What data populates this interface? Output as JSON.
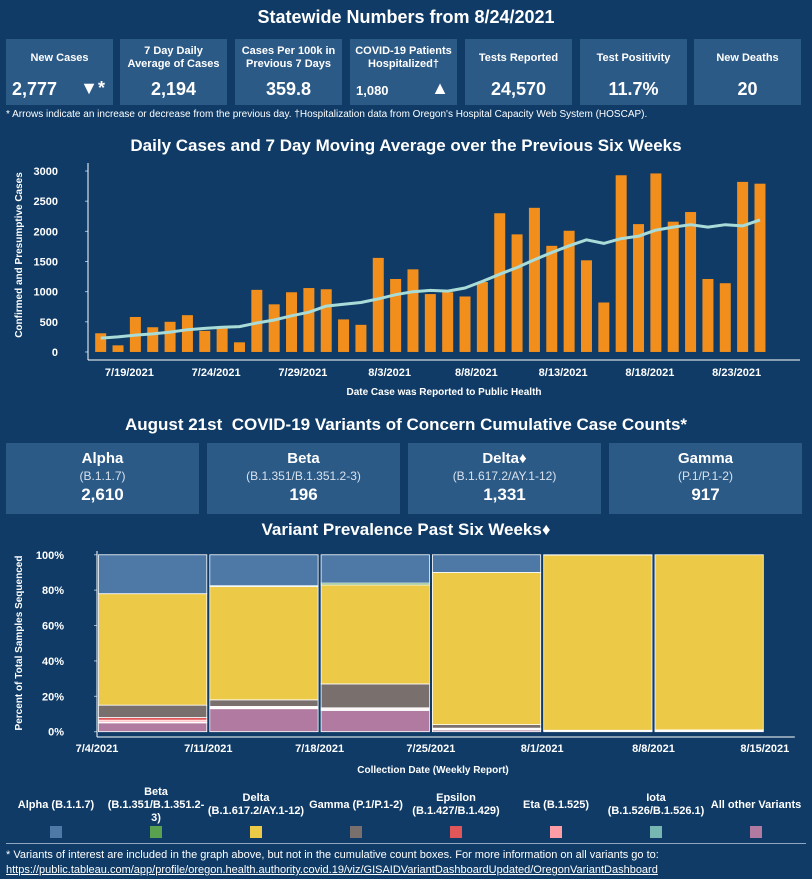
{
  "header": {
    "title": "Statewide Numbers from 8/24/2021"
  },
  "kpis": [
    {
      "label": "New Cases",
      "value": "2,777",
      "indicator": "▼*"
    },
    {
      "label": "7 Day Daily Average of Cases",
      "value": "2,194"
    },
    {
      "label": "Cases Per 100k in Previous 7 Days",
      "value": "359.8"
    },
    {
      "label": "COVID-19 Patients Hospitalized†",
      "value": "1,080",
      "indicator": "▲"
    },
    {
      "label": "Tests Reported",
      "value": "24,570"
    },
    {
      "label": "Test Positivity",
      "value": "11.7%"
    },
    {
      "label": "New Deaths",
      "value": "20"
    }
  ],
  "kpi_note": "* Arrows indicate an increase or decrease from the previous day. †Hospitalization data from Oregon's Hospital Capacity Web System (HOSCAP).",
  "variants_title": "August 21st  COVID-19 Variants of Concern Cumulative Case Counts*",
  "variants": [
    {
      "name": "Alpha",
      "lineage": "(B.1.1.7)",
      "count": "2,610"
    },
    {
      "name": "Beta",
      "lineage": "(B.1.351/B.1.351.2-3)",
      "count": "196"
    },
    {
      "name": "Delta♦",
      "lineage": "(B.1.617.2/AY.1-12)",
      "count": "1,331"
    },
    {
      "name": "Gamma",
      "lineage": "(P.1/P.1-2)",
      "count": "917"
    }
  ],
  "chart_data": [
    {
      "type": "bar_line",
      "title": "Daily Cases and 7 Day Moving Average over the Previous Six Weeks",
      "x_label": "Date Case was Reported to Public Health",
      "y_label": "Confirmed and Presumptive Cases",
      "categories": [
        null,
        null,
        "7/19/2021",
        null,
        null,
        null,
        null,
        "7/24/2021",
        null,
        null,
        null,
        null,
        "7/29/2021",
        null,
        null,
        null,
        null,
        "8/3/2021",
        null,
        null,
        null,
        null,
        "8/8/2021",
        null,
        null,
        null,
        null,
        "8/13/2021",
        null,
        null,
        null,
        null,
        "8/18/2021",
        null,
        null,
        null,
        null,
        "8/23/2021",
        null
      ],
      "series": [
        {
          "type": "bar",
          "color": "#f28e1c",
          "values": [
            310,
            110,
            580,
            410,
            500,
            610,
            350,
            400,
            160,
            1030,
            790,
            990,
            1060,
            1040,
            540,
            450,
            1560,
            1210,
            1370,
            960,
            990,
            920,
            1160,
            2300,
            1950,
            2390,
            1760,
            2010,
            1520,
            820,
            2930,
            2120,
            2960,
            2160,
            2320,
            1210,
            1140,
            2820,
            2790
          ]
        },
        {
          "type": "line",
          "color": "#a9dcd8",
          "values": [
            230,
            250,
            280,
            300,
            330,
            370,
            390,
            410,
            420,
            480,
            530,
            600,
            660,
            760,
            790,
            820,
            880,
            950,
            1000,
            1020,
            1010,
            1060,
            1170,
            1290,
            1400,
            1530,
            1650,
            1760,
            1860,
            1800,
            1880,
            1920,
            2020,
            2070,
            2110,
            2070,
            2110,
            2090,
            2190
          ]
        }
      ],
      "ylim": [
        -100,
        3100
      ],
      "yticks": [
        0,
        500,
        1000,
        1500,
        2000,
        2500,
        3000
      ]
    },
    {
      "type": "stacked_bar",
      "title": "Variant Prevalence Past Six Weeks♦",
      "x_label": "Collection Date (Weekly Report)",
      "y_label": "Percent of Total Samples Sequenced",
      "xticks": [
        "7/4/2021",
        "7/11/2021",
        "7/18/2021",
        "7/25/2021",
        "8/1/2021",
        "8/8/2021",
        "8/15/2021"
      ],
      "series": [
        {
          "name": "Alpha (B.1.1.7)",
          "color": "#4e79a7",
          "values": [
            22,
            17.5,
            16,
            10,
            0.2,
            0
          ]
        },
        {
          "name": "Beta (B.1.351/B.1.351.2-3)",
          "color": "#59a14f",
          "values": [
            0,
            0.5,
            1,
            0,
            0,
            0
          ]
        },
        {
          "name": "Delta (B.1.617.2/AY.1-12)",
          "color": "#edc948",
          "values": [
            63,
            64,
            56,
            86,
            99,
            99
          ]
        },
        {
          "name": "Gamma (P.1/P.1-2)",
          "color": "#79706e",
          "values": [
            7,
            3.7,
            13.5,
            2,
            0.3,
            0.5
          ]
        },
        {
          "name": "Epsilon (B.1.427/B.1.429)",
          "color": "#e15759",
          "values": [
            1.5,
            0.5,
            0.5,
            0.4,
            0,
            0
          ]
        },
        {
          "name": "Eta (B.1.525)",
          "color": "#ff9da7",
          "values": [
            1,
            0.5,
            0.5,
            0.3,
            0,
            0
          ]
        },
        {
          "name": "Iota (B.1.526/B.1.526.1)",
          "color": "#76b7b2",
          "values": [
            0.5,
            0.3,
            0.5,
            0.3,
            0,
            0
          ]
        },
        {
          "name": "All other Variants",
          "color": "#b07aa1",
          "values": [
            5,
            13,
            12,
            1,
            0.5,
            0.5
          ]
        }
      ],
      "ylim": [
        -3,
        101
      ],
      "yticks": [
        {
          "value": 0,
          "label": "0%"
        },
        {
          "value": 20,
          "label": "20%"
        },
        {
          "value": 40,
          "label": "40%"
        },
        {
          "value": 60,
          "label": "60%"
        },
        {
          "value": 80,
          "label": "80%"
        },
        {
          "value": 100,
          "label": "100%"
        }
      ]
    }
  ],
  "footer": {
    "note": "* Variants of interest are included in the graph above, but not in the cumulative count boxes. For more information on all variants go to:",
    "link": "https://public.tableau.com/app/profile/oregon.health.authority.covid.19/viz/GISAIDVariantDashboardUpdated/OregonVariantDashboard"
  }
}
